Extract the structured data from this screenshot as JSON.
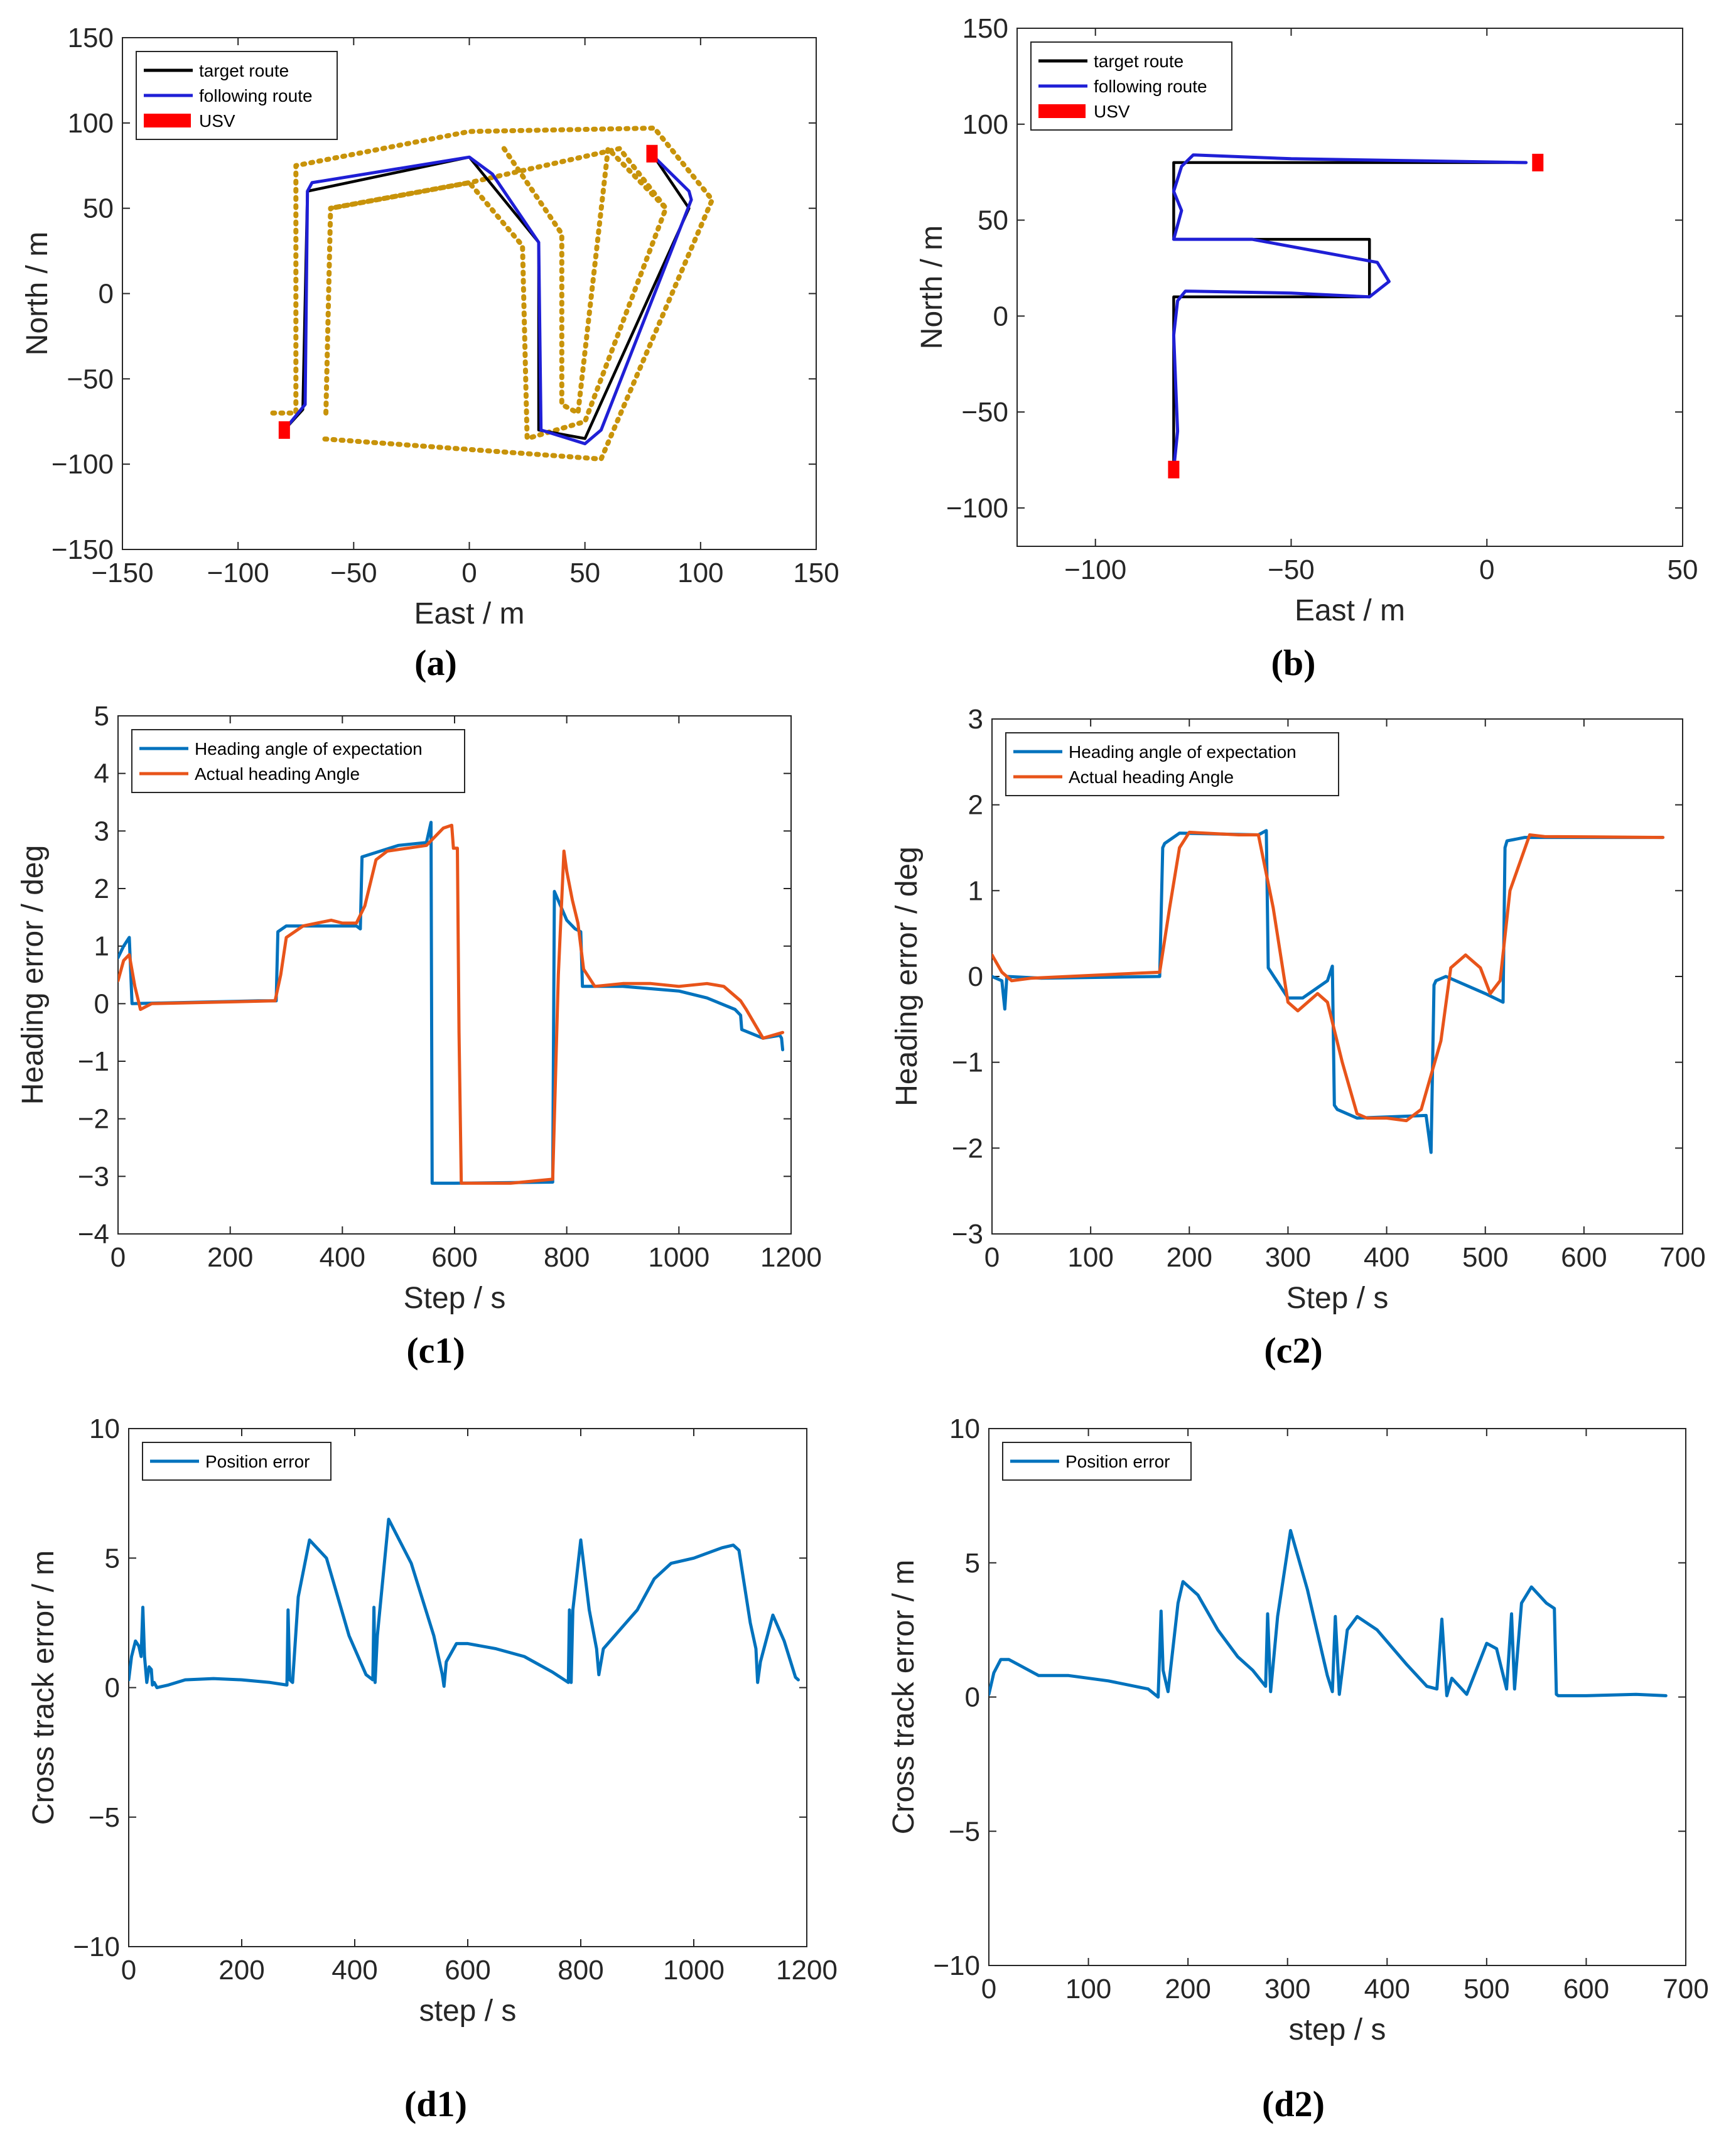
{
  "colors": {
    "target": "#000000",
    "following": "#1f1fd6",
    "usv": "#ff0000",
    "boundary": "#c8930a",
    "expected": "#0072bd",
    "actual": "#e8541a",
    "position": "#0072bd"
  },
  "chart_data": [
    {
      "id": "a",
      "caption": "(a)",
      "type": "line",
      "xlabel": "East / m",
      "ylabel": "North / m",
      "xlim": [
        -150,
        150
      ],
      "ylim": [
        -150,
        150
      ],
      "xticks": [
        -150,
        -100,
        -50,
        0,
        50,
        100,
        150
      ],
      "yticks": [
        -150,
        -100,
        -50,
        0,
        50,
        100,
        150
      ],
      "legend": [
        "target route",
        "following route",
        "USV"
      ],
      "series": [
        {
          "name": "boundary-outer",
          "style": "boundary",
          "x": [
            -85,
            -75,
            -75,
            0,
            80,
            105,
            57,
            -65
          ],
          "y": [
            -70,
            -70,
            75,
            95,
            97,
            55,
            -97,
            -85
          ]
        },
        {
          "name": "boundary-inner",
          "style": "boundary",
          "x": [
            -62,
            -62,
            -60,
            0,
            65,
            85,
            50,
            25,
            23,
            0,
            -60
          ],
          "y": [
            -70,
            -70,
            50,
            65,
            85,
            50,
            -75,
            -85,
            28,
            65,
            50
          ]
        },
        {
          "name": "boundary-inner-2",
          "style": "boundary",
          "x": [
            15,
            40,
            40,
            47,
            60,
            85
          ],
          "y": [
            85,
            35,
            -65,
            -70,
            85,
            50
          ]
        },
        {
          "name": "target route",
          "style": "target",
          "x": [
            -80,
            -72,
            -70,
            0,
            30,
            30,
            50,
            95,
            80
          ],
          "y": [
            -80,
            -68,
            60,
            80,
            30,
            -80,
            -85,
            50,
            80
          ]
        },
        {
          "name": "following route",
          "style": "following",
          "x": [
            -80,
            -71,
            -70,
            -68,
            0,
            10,
            30,
            31,
            50,
            57,
            96,
            95,
            80
          ],
          "y": [
            -80,
            -65,
            60,
            65,
            80,
            70,
            30,
            -80,
            -88,
            -80,
            55,
            60,
            80
          ]
        }
      ],
      "usv": [
        [
          -80,
          -80
        ],
        [
          79,
          82
        ]
      ]
    },
    {
      "id": "b",
      "caption": "(b)",
      "type": "line",
      "xlabel": "East / m",
      "ylabel": "North / m",
      "xlim": [
        -120,
        50
      ],
      "ylim": [
        -120,
        150
      ],
      "xticks": [
        -100,
        -50,
        0,
        50
      ],
      "yticks": [
        -100,
        -50,
        0,
        50,
        100,
        150
      ],
      "legend": [
        "target route",
        "following route",
        "USV"
      ],
      "series": [
        {
          "name": "target route",
          "style": "target",
          "x": [
            -80,
            -80,
            -30,
            -30,
            -80,
            -80,
            10
          ],
          "y": [
            -80,
            10,
            10,
            40,
            40,
            80,
            80
          ]
        },
        {
          "name": "following route",
          "style": "following",
          "x": [
            -80,
            -79,
            -80,
            -79,
            -77,
            -50,
            -30,
            -25,
            -28,
            -60,
            -80,
            -78,
            -80,
            -78,
            -75,
            -50,
            10
          ],
          "y": [
            -80,
            -60,
            -10,
            8,
            13,
            12,
            10,
            18,
            28,
            40,
            40,
            55,
            65,
            78,
            84,
            82,
            80
          ]
        }
      ],
      "usv": [
        [
          -80,
          -80
        ],
        [
          13,
          80
        ]
      ]
    },
    {
      "id": "c1",
      "caption": "(c1)",
      "type": "line",
      "xlabel": "Step / s",
      "ylabel": "Heading error / deg",
      "xlim": [
        0,
        1200
      ],
      "ylim": [
        -4,
        5
      ],
      "xticks": [
        0,
        200,
        400,
        600,
        800,
        1000,
        1200
      ],
      "yticks": [
        -4,
        -3,
        -2,
        -1,
        0,
        1,
        2,
        3,
        4,
        5
      ],
      "legend": [
        "Heading angle of expectation",
        "Actual heading Angle"
      ],
      "series": [
        {
          "name": "Heading angle of expectation",
          "style": "expected",
          "x": [
            0,
            10,
            20,
            25,
            250,
            282,
            285,
            300,
            425,
            432,
            435,
            500,
            550,
            558,
            560,
            600,
            775,
            778,
            800,
            815,
            825,
            828,
            900,
            1000,
            1050,
            1100,
            1110,
            1112,
            1150,
            1180,
            1183,
            1185
          ],
          "y": [
            0.8,
            1.0,
            1.15,
            0.0,
            0.05,
            0.05,
            1.25,
            1.35,
            1.35,
            1.3,
            2.55,
            2.75,
            2.8,
            3.15,
            -3.12,
            -3.12,
            -3.1,
            1.95,
            1.45,
            1.3,
            1.25,
            0.3,
            0.3,
            0.22,
            0.1,
            -0.1,
            -0.2,
            -0.45,
            -0.6,
            -0.55,
            -0.6,
            -0.8
          ]
        },
        {
          "name": "Actual heading Angle",
          "style": "actual",
          "x": [
            0,
            10,
            20,
            30,
            40,
            60,
            280,
            290,
            300,
            330,
            380,
            400,
            425,
            440,
            460,
            480,
            550,
            580,
            595,
            598,
            605,
            608,
            612,
            700,
            775,
            785,
            795,
            800,
            810,
            820,
            830,
            850,
            900,
            950,
            1000,
            1050,
            1080,
            1110,
            1120,
            1150,
            1185
          ],
          "y": [
            0.4,
            0.75,
            0.85,
            0.3,
            -0.1,
            0.0,
            0.05,
            0.5,
            1.15,
            1.35,
            1.45,
            1.4,
            1.4,
            1.7,
            2.5,
            2.65,
            2.75,
            3.05,
            3.1,
            2.7,
            2.7,
            -0.5,
            -3.12,
            -3.12,
            -3.05,
            0.5,
            2.65,
            2.3,
            1.8,
            1.4,
            0.6,
            0.3,
            0.35,
            0.35,
            0.3,
            0.35,
            0.3,
            0.05,
            -0.1,
            -0.6,
            -0.5
          ]
        }
      ]
    },
    {
      "id": "c2",
      "caption": "(c2)",
      "type": "line",
      "xlabel": "Step / s",
      "ylabel": "Heading error / deg",
      "xlim": [
        0,
        700
      ],
      "ylim": [
        -3,
        3
      ],
      "xticks": [
        0,
        100,
        200,
        300,
        400,
        500,
        600,
        700
      ],
      "yticks": [
        -3,
        -2,
        -1,
        0,
        1,
        2,
        3
      ],
      "legend": [
        "Heading angle of expectation",
        "Actual heading Angle"
      ],
      "series": [
        {
          "name": "Heading angle of expectation",
          "style": "expected",
          "x": [
            0,
            10,
            13,
            15,
            50,
            170,
            173,
            175,
            190,
            270,
            278,
            280,
            300,
            315,
            340,
            345,
            347,
            350,
            370,
            440,
            445,
            448,
            450,
            460,
            500,
            518,
            520,
            522,
            540,
            680
          ],
          "y": [
            0.0,
            -0.05,
            -0.38,
            0.0,
            -0.02,
            0.0,
            1.5,
            1.55,
            1.67,
            1.65,
            1.7,
            0.1,
            -0.25,
            -0.25,
            -0.05,
            0.12,
            -1.5,
            -1.55,
            -1.65,
            -1.62,
            -2.05,
            -0.1,
            -0.05,
            0.0,
            -0.2,
            -0.3,
            1.5,
            1.58,
            1.62,
            1.62
          ]
        },
        {
          "name": "Actual heading Angle",
          "style": "actual",
          "x": [
            0,
            5,
            10,
            20,
            40,
            170,
            180,
            190,
            200,
            250,
            270,
            285,
            300,
            310,
            330,
            340,
            355,
            370,
            380,
            400,
            420,
            435,
            455,
            465,
            480,
            495,
            505,
            515,
            525,
            545,
            560,
            680
          ],
          "y": [
            0.25,
            0.15,
            0.05,
            -0.05,
            -0.02,
            0.05,
            0.8,
            1.5,
            1.68,
            1.65,
            1.65,
            0.8,
            -0.3,
            -0.4,
            -0.2,
            -0.3,
            -1.0,
            -1.6,
            -1.65,
            -1.65,
            -1.68,
            -1.55,
            -0.75,
            0.1,
            0.25,
            0.1,
            -0.2,
            -0.05,
            1.0,
            1.65,
            1.63,
            1.62
          ]
        }
      ]
    },
    {
      "id": "d1",
      "caption": "(d1)",
      "type": "line",
      "xlabel": "step / s",
      "ylabel": "Cross track error / m",
      "xlim": [
        0,
        1200
      ],
      "ylim": [
        -10,
        10
      ],
      "xticks": [
        0,
        200,
        400,
        600,
        800,
        1000,
        1200
      ],
      "yticks": [
        -10,
        -5,
        0,
        5,
        10
      ],
      "legend": [
        "Position error"
      ],
      "series": [
        {
          "name": "Position error",
          "style": "position",
          "x": [
            0,
            5,
            12,
            18,
            22,
            25,
            28,
            32,
            36,
            40,
            42,
            45,
            50,
            70,
            100,
            150,
            200,
            250,
            280,
            282,
            285,
            290,
            300,
            320,
            350,
            390,
            420,
            432,
            434,
            436,
            440,
            460,
            500,
            540,
            555,
            558,
            562,
            580,
            600,
            650,
            700,
            750,
            778,
            780,
            783,
            786,
            800,
            815,
            828,
            832,
            840,
            880,
            900,
            930,
            960,
            1000,
            1050,
            1070,
            1080,
            1100,
            1110,
            1113,
            1118,
            1140,
            1160,
            1180,
            1185
          ],
          "y": [
            0.3,
            1.2,
            1.8,
            1.6,
            1.2,
            3.1,
            1.2,
            0.2,
            0.8,
            0.7,
            0.1,
            0.2,
            0.0,
            0.1,
            0.3,
            0.35,
            0.3,
            0.2,
            0.1,
            3.0,
            0.3,
            0.2,
            3.5,
            5.7,
            5.0,
            2.0,
            0.5,
            0.3,
            3.1,
            0.2,
            2.0,
            6.5,
            4.8,
            2.0,
            0.5,
            0.05,
            1.0,
            1.7,
            1.7,
            1.5,
            1.2,
            0.6,
            0.2,
            3.0,
            0.2,
            3.0,
            5.7,
            3.0,
            1.5,
            0.5,
            1.5,
            2.5,
            3.0,
            4.2,
            4.8,
            5.0,
            5.4,
            5.5,
            5.3,
            2.5,
            1.5,
            0.2,
            1.0,
            2.8,
            1.8,
            0.4,
            0.3
          ]
        }
      ]
    },
    {
      "id": "d2",
      "caption": "(d2)",
      "type": "line",
      "xlabel": "step / s",
      "ylabel": "Cross track error / m",
      "xlim": [
        0,
        700
      ],
      "ylim": [
        -10,
        10
      ],
      "xticks": [
        0,
        100,
        200,
        300,
        400,
        500,
        600,
        700
      ],
      "yticks": [
        -10,
        -5,
        0,
        5,
        10
      ],
      "legend": [
        "Position error"
      ],
      "series": [
        {
          "name": "Position error",
          "style": "position",
          "x": [
            0,
            5,
            12,
            20,
            30,
            50,
            80,
            120,
            160,
            170,
            173,
            175,
            180,
            190,
            195,
            210,
            230,
            250,
            265,
            278,
            280,
            283,
            290,
            303,
            320,
            340,
            345,
            348,
            352,
            360,
            370,
            390,
            420,
            440,
            450,
            455,
            460,
            465,
            480,
            500,
            510,
            520,
            525,
            528,
            535,
            545,
            560,
            568,
            570,
            572,
            600,
            650,
            680
          ],
          "y": [
            0.1,
            0.9,
            1.4,
            1.4,
            1.2,
            0.8,
            0.8,
            0.6,
            0.3,
            0.0,
            3.2,
            1.0,
            0.2,
            3.5,
            4.3,
            3.8,
            2.5,
            1.5,
            1.0,
            0.4,
            3.1,
            0.2,
            3.0,
            6.2,
            4.0,
            0.8,
            0.2,
            3.0,
            0.1,
            2.5,
            3.0,
            2.5,
            1.2,
            0.4,
            0.3,
            2.9,
            0.05,
            0.7,
            0.1,
            2.0,
            1.8,
            0.3,
            3.1,
            0.3,
            3.5,
            4.1,
            3.5,
            3.3,
            0.1,
            0.05,
            0.05,
            0.1,
            0.05
          ]
        }
      ]
    }
  ]
}
